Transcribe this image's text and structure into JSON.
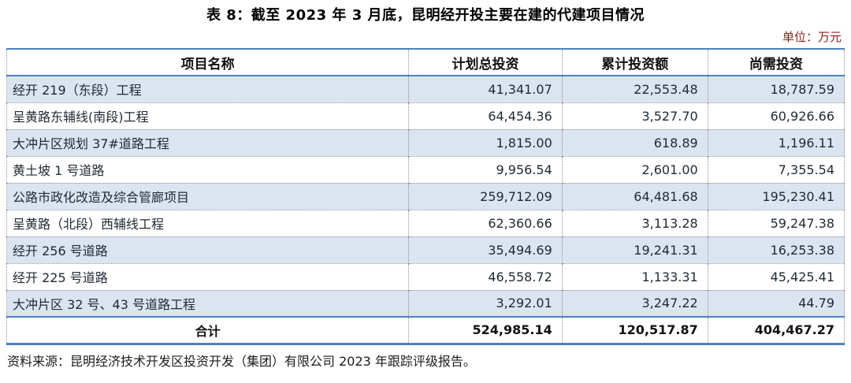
{
  "title": "表 8：截至 2023 年 3 月底，昆明经开投主要在建的代建项目情况",
  "unit_note": "单位：万元",
  "colors": {
    "stripe_row_bg": "#dbe5f1",
    "table_border_blue": "#4f81bd",
    "dotted_grid": "#909090",
    "unit_note_text": "#8b2020"
  },
  "table": {
    "headers": [
      "项目名称",
      "计划总投资",
      "累计投资额",
      "尚需投资"
    ],
    "rows": [
      {
        "name": "经开 219（东段）工程",
        "planned": "41,341.07",
        "invested": "22,553.48",
        "remaining": "18,787.59"
      },
      {
        "name": "呈黄路东辅线(南段)工程",
        "planned": "64,454.36",
        "invested": "3,527.70",
        "remaining": "60,926.66"
      },
      {
        "name": "大冲片区规划 37#道路工程",
        "planned": "1,815.00",
        "invested": "618.89",
        "remaining": "1,196.11"
      },
      {
        "name": "黄土坡 1 号道路",
        "planned": "9,956.54",
        "invested": "2,601.00",
        "remaining": "7,355.54"
      },
      {
        "name": "公路市政化改造及综合管廊项目",
        "planned": "259,712.09",
        "invested": "64,481.68",
        "remaining": "195,230.41"
      },
      {
        "name": "呈黄路（北段）西辅线工程",
        "planned": "62,360.66",
        "invested": "3,113.28",
        "remaining": "59,247.38"
      },
      {
        "name": "经开 256 号道路",
        "planned": "35,494.69",
        "invested": "19,241.31",
        "remaining": "16,253.38"
      },
      {
        "name": "经开 225 号道路",
        "planned": "46,558.72",
        "invested": "1,133.31",
        "remaining": "45,425.41"
      },
      {
        "name": "大冲片区 32 号、43 号道路工程",
        "planned": "3,292.01",
        "invested": "3,247.22",
        "remaining": "44.79"
      }
    ],
    "total": {
      "label": "合计",
      "planned": "524,985.14",
      "invested": "120,517.87",
      "remaining": "404,467.27"
    }
  },
  "source_note": "资料来源：昆明经济技术开发区投资开发（集团）有限公司 2023 年跟踪评级报告。"
}
